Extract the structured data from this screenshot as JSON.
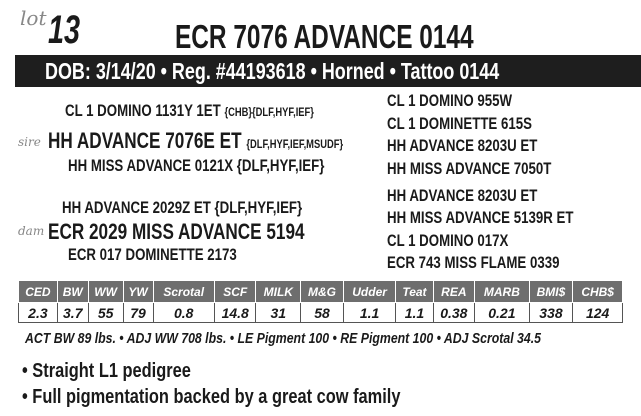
{
  "lot": {
    "label": "lot",
    "number": "13"
  },
  "title": "ECR 7076 ADVANCE 0144",
  "info_bar": "DOB: 3/14/20 • Reg. #44193618 • Horned • Tattoo 0144",
  "pedigree": {
    "sire_label": "sire",
    "dam_label": "dam",
    "sire_sire": {
      "name": "CL 1 DOMINO 1131Y 1ET",
      "tags": "{CHB}{DLF,HYF,IEF}"
    },
    "sire": {
      "name": "HH ADVANCE 7076E ET",
      "tags": "{DLF,HYF,IEF,MSUDF}"
    },
    "sire_dam": {
      "name": "HH MISS ADVANCE 0121X {DLF,HYF,IEF}"
    },
    "dam_sire": {
      "name": "HH ADVANCE 2029Z ET {DLF,HYF,IEF}"
    },
    "dam": {
      "name": "ECR 2029 MISS ADVANCE 5194"
    },
    "dam_dam": {
      "name": "ECR 017 DOMINETTE 2173"
    },
    "grandparents": [
      "CL 1 DOMINO 955W",
      "CL 1 DOMINETTE 615S",
      "HH ADVANCE 8203U ET",
      "HH MISS ADVANCE 7050T",
      "HH ADVANCE 8203U ET",
      "HH MISS ADVANCE 5139R ET",
      "CL 1 DOMINO 017X",
      "ECR 743 MISS FLAME 0339"
    ]
  },
  "epd": {
    "headers": [
      "CED",
      "BW",
      "WW",
      "YW",
      "Scrotal",
      "SCF",
      "MILK",
      "M&G",
      "Udder",
      "Teat",
      "REA",
      "MARB",
      "BMI$",
      "CHB$"
    ],
    "values": [
      "2.3",
      "3.7",
      "55",
      "79",
      "0.8",
      "14.8",
      "31",
      "58",
      "1.1",
      "1.1",
      "0.38",
      "0.21",
      "338",
      "124"
    ]
  },
  "performance": "ACT BW 89 lbs. • ADJ WW 708 lbs. •  LE Pigment 100 • RE Pigment 100 • ADJ Scrotal 34.5",
  "bullets": [
    "Straight L1 pedigree",
    "Full pigmentation backed by a great cow family"
  ]
}
